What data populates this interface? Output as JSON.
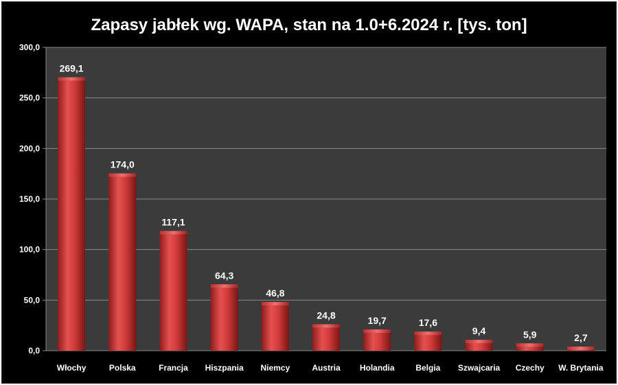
{
  "chart_data": {
    "type": "bar",
    "title": "Zapasy jabłek wg. WAPA, stan na 1.0+6.2024 r. [tys. ton]",
    "categories": [
      "Włochy",
      "Polska",
      "Francja",
      "Hiszpania",
      "Niemcy",
      "Austria",
      "Holandia",
      "Belgia",
      "Szwajcaria",
      "Czechy",
      "W. Brytania"
    ],
    "values": [
      269.1,
      174.0,
      117.1,
      64.3,
      46.8,
      24.8,
      19.7,
      17.6,
      9.4,
      5.9,
      2.7
    ],
    "value_labels": [
      "269,1",
      "174,0",
      "117,1",
      "64,3",
      "46,8",
      "24,8",
      "19,7",
      "17,6",
      "9,4",
      "5,9",
      "2,7"
    ],
    "yticks": [
      0,
      50,
      100,
      150,
      200,
      250,
      300
    ],
    "ytick_labels": [
      "0,0",
      "50,0",
      "100,0",
      "150,0",
      "200,0",
      "250,0",
      "300,0"
    ],
    "ylim": [
      0,
      300
    ],
    "grid": true,
    "colors": {
      "background": "#000000",
      "plot_area": "#3b3b3b",
      "bar": "#d23a3a",
      "grid": "#8a8a8a",
      "text": "#ffffff"
    }
  }
}
